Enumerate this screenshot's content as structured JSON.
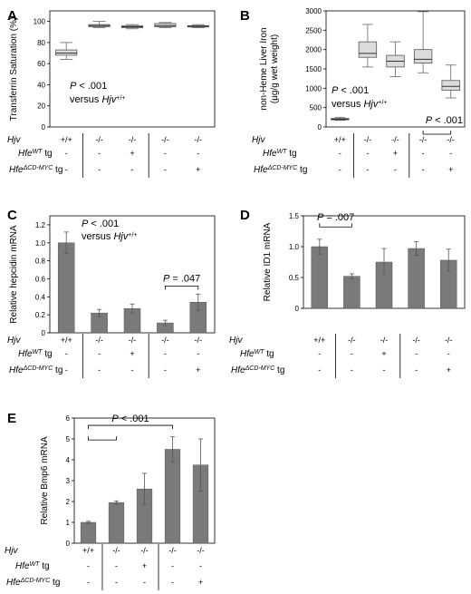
{
  "chart_data": [
    {
      "panel": "A",
      "type": "box",
      "ylabel": "Transferrin Saturation (%)",
      "yticks": [
        0,
        20,
        40,
        60,
        80,
        100
      ],
      "ylim": [
        0,
        110
      ],
      "boxes": [
        {
          "min": 64,
          "q1": 68,
          "median": 70,
          "q3": 73,
          "max": 80
        },
        {
          "min": 94,
          "q1": 95,
          "median": 96,
          "q3": 97,
          "max": 100
        },
        {
          "min": 93,
          "q1": 94,
          "median": 95,
          "q3": 96,
          "max": 97
        },
        {
          "min": 94,
          "q1": 95,
          "median": 96,
          "q3": 98,
          "max": 99
        },
        {
          "min": 94,
          "q1": 95,
          "median": 95.5,
          "q3": 96,
          "max": 97
        }
      ],
      "annotations": [
        {
          "line1": "P < .001",
          "line2": "versus Hjv",
          "sup": "+/+"
        }
      ]
    },
    {
      "panel": "B",
      "type": "box",
      "ylabel": "non-Heme Liver Iron (µg/g wet weight)",
      "yticks": [
        0,
        500,
        1000,
        1500,
        2000,
        2500,
        3000
      ],
      "ylim": [
        0,
        3000
      ],
      "boxes": [
        {
          "min": 170,
          "q1": 190,
          "median": 200,
          "q3": 220,
          "max": 250
        },
        {
          "min": 1550,
          "q1": 1800,
          "median": 1900,
          "q3": 2200,
          "max": 2650
        },
        {
          "min": 1300,
          "q1": 1550,
          "median": 1700,
          "q3": 1850,
          "max": 2200
        },
        {
          "min": 1400,
          "q1": 1650,
          "median": 1750,
          "q3": 2000,
          "max": 2980
        },
        {
          "min": 750,
          "q1": 950,
          "median": 1050,
          "q3": 1200,
          "max": 1600
        }
      ],
      "annotations": [
        {
          "line1": "P < .001",
          "line2": "versus Hjv",
          "sup": "+/+"
        },
        {
          "text": "P < .001"
        }
      ]
    },
    {
      "panel": "C",
      "type": "bar",
      "ylabel": "Relative hepcidin mRNA",
      "yticks": [
        "0",
        "0.2",
        "0.4",
        "0.6",
        "0.8",
        "1.0",
        "1.2"
      ],
      "ylim": [
        0,
        1.3
      ],
      "values": [
        1.0,
        0.22,
        0.27,
        0.11,
        0.34
      ],
      "errors": [
        0.12,
        0.04,
        0.05,
        0.03,
        0.09
      ],
      "annotations": [
        {
          "line1": "P < .001",
          "line2": "versus Hjv",
          "sup": "+/+"
        },
        {
          "text": "P = .047"
        }
      ]
    },
    {
      "panel": "D",
      "type": "bar",
      "ylabel": "Relative ID1 mRNA",
      "yticks": [
        "0",
        "0.5",
        "1.0",
        "1.5"
      ],
      "ylim": [
        0,
        1.5
      ],
      "values": [
        1.0,
        0.52,
        0.75,
        0.97,
        0.78
      ],
      "errors": [
        0.12,
        0.04,
        0.22,
        0.11,
        0.18
      ],
      "annotations": [
        {
          "text": "P = .007"
        }
      ]
    },
    {
      "panel": "E",
      "type": "bar",
      "ylabel": "Relative Bmp6 mRNA",
      "yticks": [
        "0",
        "1",
        "2",
        "3",
        "4",
        "5",
        "6"
      ],
      "ylim": [
        0,
        6
      ],
      "values": [
        1.0,
        1.95,
        2.6,
        4.5,
        3.75
      ],
      "errors": [
        0.05,
        0.08,
        0.75,
        0.6,
        1.25
      ],
      "annotations": [
        {
          "text": "P < .001"
        }
      ]
    }
  ],
  "genotype_table": {
    "row_hjv": "Hjv",
    "row_wt_base": "Hfe",
    "row_wt_sup": "WT",
    "row_wt_tail": " tg",
    "row_dcd_base": "Hfe",
    "row_dcd_sup": "ΔCD-MYC",
    "row_dcd_tail": " tg",
    "hjv": [
      "+/+",
      "-/-",
      "-/-",
      "-/-",
      "-/-"
    ],
    "wt": [
      "-",
      "-",
      "+",
      "-",
      "-"
    ],
    "dcd": [
      "-",
      "-",
      "-",
      "-",
      "+"
    ]
  },
  "colors": {
    "bar": "#7a7a7a",
    "box": "#dcdcdc"
  }
}
